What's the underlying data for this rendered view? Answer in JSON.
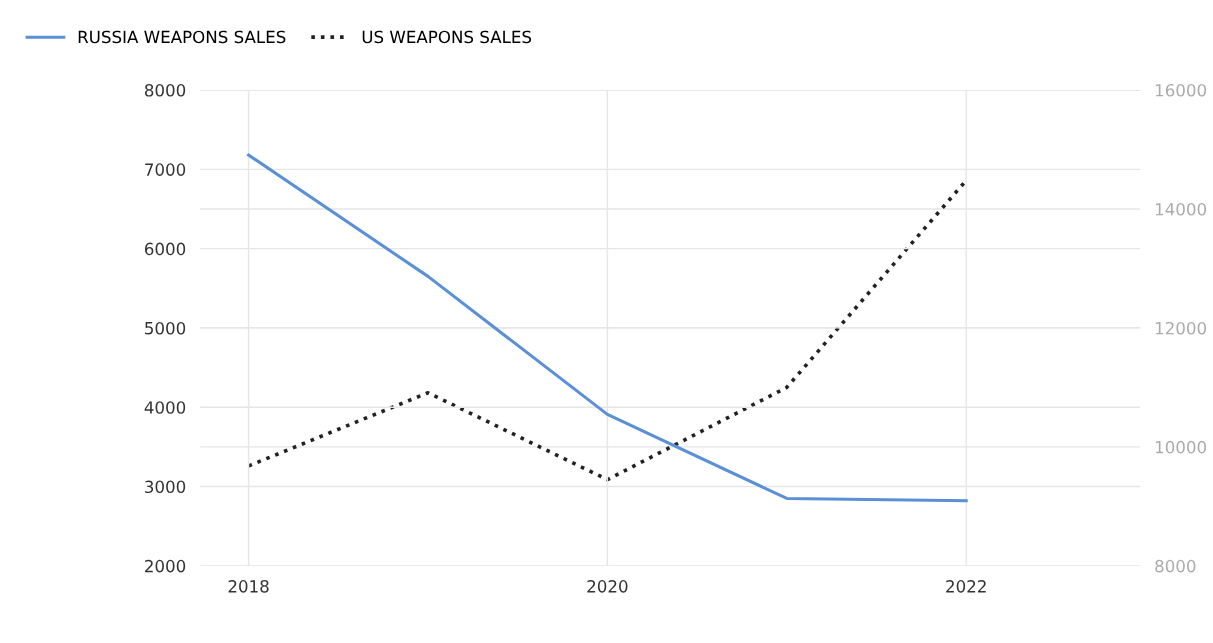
{
  "chart_data": {
    "type": "line",
    "x": [
      2018,
      2019,
      2020,
      2021,
      2022
    ],
    "series": [
      {
        "name": "RUSSIA WEAPONS SALES",
        "color": "#5b8fd6",
        "values": [
          7180,
          5650,
          3910,
          2850,
          2820
        ],
        "line_style": "solid"
      },
      {
        "name": "US WEAPONS SALES",
        "color": "#222222",
        "values": [
          9680,
          10910,
          9450,
          11000,
          14480
        ],
        "line_style": "dotted",
        "axis": "y2"
      }
    ],
    "xlim": [
      2017.73,
      2022.97
    ],
    "xticks": [
      2018,
      2020,
      2022
    ],
    "ylim": [
      2000,
      8000
    ],
    "yticks": [
      2000,
      3000,
      4000,
      5000,
      6000,
      7000,
      8000
    ],
    "y2lim": [
      8000,
      16000
    ],
    "y2ticks": [
      8000,
      10000,
      12000,
      14000,
      16000
    ],
    "grid": true,
    "legend": "top left",
    "marker": "none"
  }
}
